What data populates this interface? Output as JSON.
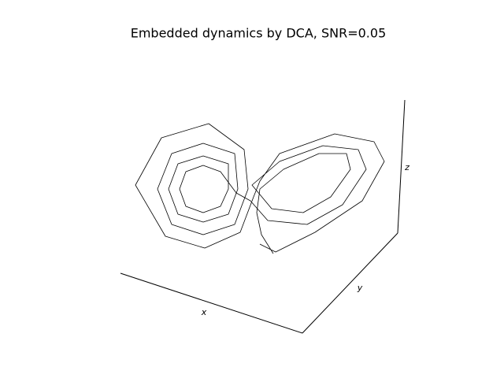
{
  "chart_data": {
    "type": "line",
    "title": "Embedded dynamics by DCA, SNR=0.05",
    "x_label": "x",
    "y_label": "y",
    "z_label": "z",
    "xlim": [
      0,
      640
    ],
    "ylim": [
      0,
      400
    ],
    "x": [
      347,
      332,
      326,
      330,
      360,
      405,
      440,
      445,
      420,
      385,
      345,
      320,
      355,
      410,
      455,
      465,
      435,
      390,
      340,
      318,
      300,
      280,
      258,
      236,
      228,
      236,
      258,
      280,
      290,
      290,
      258,
      226,
      214,
      226,
      258,
      290,
      302,
      298,
      258,
      218,
      200,
      218,
      258,
      298,
      315,
      310,
      265,
      205,
      172,
      210,
      260,
      305,
      322,
      330,
      355,
      425,
      475,
      488,
      460,
      400,
      350,
      330
    ],
    "series": [
      {
        "color": "#000000",
        "values": [
          78,
          102,
          130,
          160,
          185,
          205,
          205,
          185,
          150,
          130,
          135,
          165,
          195,
          215,
          210,
          185,
          140,
          115,
          120,
          145,
          155,
          182,
          190,
          182,
          160,
          138,
          130,
          138,
          160,
          192,
          202,
          192,
          160,
          128,
          118,
          128,
          160,
          205,
          218,
          205,
          160,
          115,
          102,
          115,
          160,
          210,
          243,
          225,
          165,
          100,
          85,
          105,
          150,
          170,
          205,
          230,
          220,
          195,
          145,
          105,
          80,
          90
        ]
      }
    ]
  }
}
